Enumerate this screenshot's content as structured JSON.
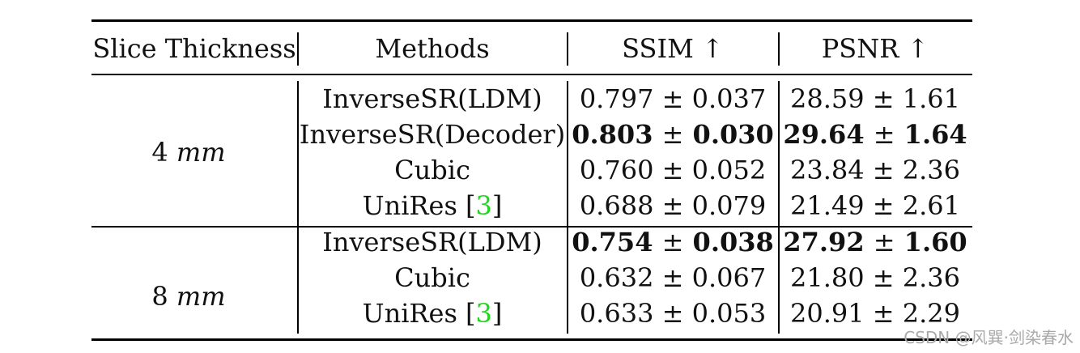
{
  "table": {
    "headers": {
      "slice": "Slice Thickness",
      "methods": "Methods",
      "ssim": "SSIM ↑",
      "psnr": "PSNR ↑"
    },
    "groups": [
      {
        "thickness_value": "4",
        "thickness_unit": "mm",
        "rows": [
          {
            "method": "InverseSR(LDM)",
            "ssim_mean": "0.797",
            "ssim_std": "0.037",
            "psnr_mean": "28.59",
            "psnr_std": "1.61"
          },
          {
            "method": "InverseSR(Decoder)",
            "ssim_mean": "0.803",
            "ssim_std": "0.030",
            "psnr_mean": "29.64",
            "psnr_std": "1.64"
          },
          {
            "method": "Cubic",
            "ssim_mean": "0.760",
            "ssim_std": "0.052",
            "psnr_mean": "23.84",
            "psnr_std": "2.36"
          },
          {
            "method": "UniRes [",
            "cite": "3",
            "method_end": "]",
            "ssim_mean": "0.688",
            "ssim_std": "0.079",
            "psnr_mean": "21.49",
            "psnr_std": "2.61"
          }
        ]
      },
      {
        "thickness_value": "8",
        "thickness_unit": "mm",
        "rows": [
          {
            "method": "InverseSR(LDM)",
            "ssim_mean": "0.754",
            "ssim_std": "0.038",
            "psnr_mean": "27.92",
            "psnr_std": "1.60"
          },
          {
            "method": "Cubic",
            "ssim_mean": "0.632",
            "ssim_std": "0.067",
            "psnr_mean": "21.80",
            "psnr_std": "2.36"
          },
          {
            "method": "UniRes [",
            "cite": "3",
            "method_end": "]",
            "ssim_mean": "0.633",
            "ssim_std": "0.053",
            "psnr_mean": "20.91",
            "psnr_std": "2.29"
          }
        ]
      }
    ],
    "pm_symbol": "±"
  },
  "watermark": "CSDN @风巽·剑染春水"
}
